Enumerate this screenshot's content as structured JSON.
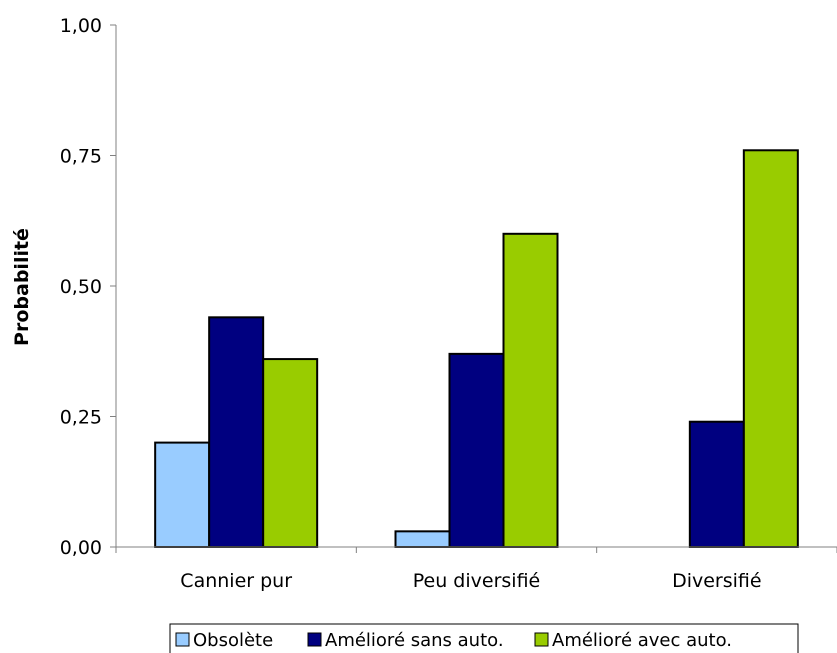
{
  "chart_data": {
    "type": "bar",
    "title": "",
    "xlabel": "",
    "ylabel": "Probabilité",
    "ylim": [
      0,
      1
    ],
    "yticks": [
      "0,00",
      "0,25",
      "0,50",
      "0,75",
      "1,00"
    ],
    "categories": [
      "Cannier pur",
      "Peu diversifié",
      "Diversifié"
    ],
    "series": [
      {
        "name": "Obsolète",
        "color": "#99ccff",
        "values": [
          0.2,
          0.03,
          0.0
        ]
      },
      {
        "name": "Amélioré sans auto.",
        "color": "#000080",
        "values": [
          0.44,
          0.37,
          0.24
        ]
      },
      {
        "name": "Amélioré avec auto.",
        "color": "#99cc00",
        "values": [
          0.36,
          0.6,
          0.76
        ]
      }
    ],
    "legend_position": "bottom",
    "grid": false
  }
}
